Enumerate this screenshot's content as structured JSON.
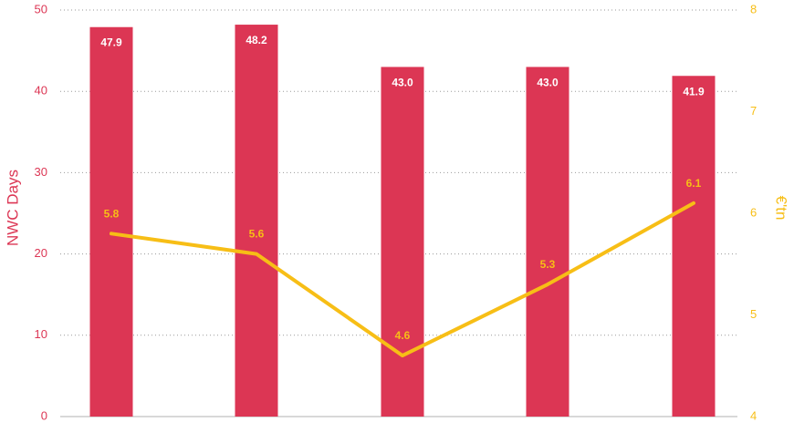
{
  "chart_data": {
    "type": "bar",
    "categories": [
      "",
      "",
      "",
      "",
      ""
    ],
    "series": [
      {
        "type": "bar",
        "axis": "left",
        "values": [
          47.9,
          48.2,
          43.0,
          43.0,
          41.9
        ],
        "labels": [
          "47.9",
          "48.2",
          "43.0",
          "43.0",
          "41.9"
        ]
      },
      {
        "type": "line",
        "axis": "right",
        "values": [
          5.8,
          5.6,
          4.6,
          5.3,
          6.1
        ],
        "labels": [
          "5.8",
          "5.6",
          "4.6",
          "5.3",
          "6.1"
        ]
      }
    ],
    "y_left": {
      "label": "NWC Days",
      "ylim": [
        0,
        50
      ],
      "ticks": [
        "0",
        "10",
        "20",
        "30",
        "40",
        "50"
      ]
    },
    "y_right": {
      "label": "€'tn",
      "ylim": [
        4,
        8
      ],
      "ticks": [
        "4",
        "5",
        "6",
        "7",
        "8"
      ]
    },
    "grid": true,
    "colors": {
      "bar": "#dc3654",
      "line": "#f7be16",
      "left_axis": "#dc3654",
      "right_axis": "#f7be16"
    }
  }
}
